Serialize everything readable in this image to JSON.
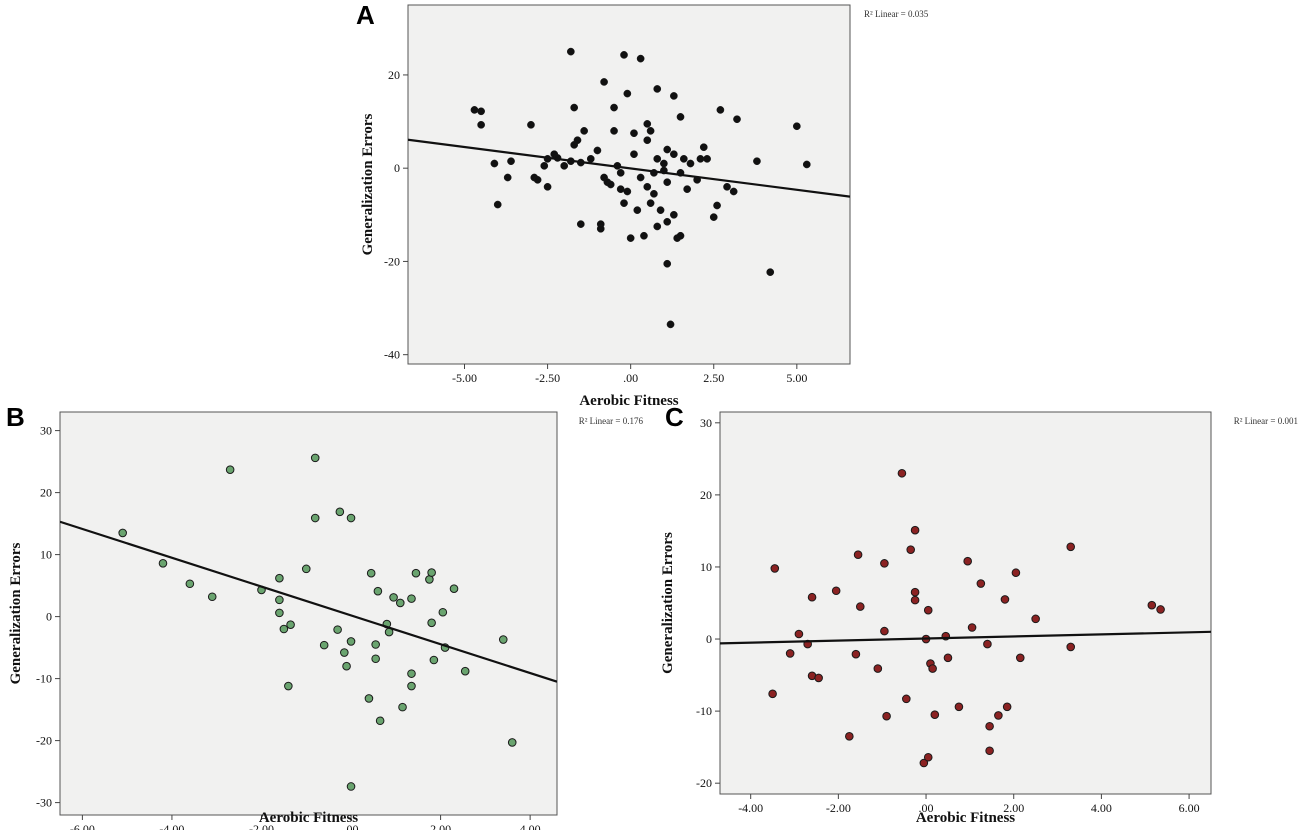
{
  "chart_data": [
    {
      "type": "scatter",
      "panel_label": "A",
      "xlabel": "Aerobic Fitness",
      "ylabel": "Generalization Errors",
      "xlim": [
        -6.7,
        6.6
      ],
      "ylim": [
        -42,
        35
      ],
      "xticks": [
        -5,
        -2.5,
        0,
        2.5,
        5
      ],
      "xtick_labels": [
        "-5.00",
        "-2.50",
        ".00",
        "2.50",
        "5.00"
      ],
      "yticks": [
        -40,
        -20,
        0,
        20
      ],
      "ytick_labels": [
        "-40",
        "-20",
        "0",
        "20"
      ],
      "r2_text": "R² Linear = 0.035",
      "point_color": "#111111",
      "fit_line": {
        "x": [
          -6.7,
          6.6
        ],
        "y": [
          6.1,
          -6.1
        ]
      },
      "points": [
        [
          -4.7,
          12.5
        ],
        [
          -4.5,
          12.2
        ],
        [
          -4.5,
          9.3
        ],
        [
          -4.1,
          1.0
        ],
        [
          -4.0,
          -7.8
        ],
        [
          -3.7,
          -2.0
        ],
        [
          -3.6,
          1.5
        ],
        [
          -3.0,
          9.3
        ],
        [
          -2.9,
          -2.0
        ],
        [
          -2.8,
          -2.5
        ],
        [
          -2.6,
          0.5
        ],
        [
          -2.5,
          2.0
        ],
        [
          -2.5,
          -4.0
        ],
        [
          -2.3,
          3.0
        ],
        [
          -2.2,
          2.2
        ],
        [
          -2.0,
          0.5
        ],
        [
          -1.8,
          25.0
        ],
        [
          -1.8,
          1.5
        ],
        [
          -1.7,
          5.0
        ],
        [
          -1.7,
          13.0
        ],
        [
          -1.6,
          6.0
        ],
        [
          -1.5,
          -12.0
        ],
        [
          -1.5,
          1.2
        ],
        [
          -1.4,
          8.0
        ],
        [
          -1.2,
          2.0
        ],
        [
          -1.0,
          3.8
        ],
        [
          -0.9,
          -12.0
        ],
        [
          -0.9,
          -13.0
        ],
        [
          -0.8,
          18.5
        ],
        [
          -0.8,
          -2.0
        ],
        [
          -0.7,
          -3.0
        ],
        [
          -0.6,
          -3.5
        ],
        [
          -0.5,
          13.0
        ],
        [
          -0.5,
          8.0
        ],
        [
          -0.4,
          0.5
        ],
        [
          -0.3,
          -1.0
        ],
        [
          -0.3,
          -4.5
        ],
        [
          -0.2,
          -7.5
        ],
        [
          -0.2,
          24.3
        ],
        [
          -0.1,
          16.0
        ],
        [
          -0.1,
          -5.0
        ],
        [
          0.0,
          -15.0
        ],
        [
          0.1,
          7.5
        ],
        [
          0.1,
          3.0
        ],
        [
          0.2,
          -9.0
        ],
        [
          0.3,
          23.5
        ],
        [
          0.3,
          -2.0
        ],
        [
          0.4,
          -14.5
        ],
        [
          0.5,
          9.5
        ],
        [
          0.5,
          6.0
        ],
        [
          0.5,
          -4.0
        ],
        [
          0.6,
          8.0
        ],
        [
          0.6,
          -7.5
        ],
        [
          0.7,
          -1.0
        ],
        [
          0.7,
          -5.5
        ],
        [
          0.8,
          17.0
        ],
        [
          0.8,
          2.0
        ],
        [
          0.8,
          -12.5
        ],
        [
          0.9,
          -9.0
        ],
        [
          1.0,
          1.0
        ],
        [
          1.0,
          -0.5
        ],
        [
          1.1,
          4.0
        ],
        [
          1.1,
          -3.0
        ],
        [
          1.1,
          -11.5
        ],
        [
          1.1,
          -20.5
        ],
        [
          1.2,
          -33.5
        ],
        [
          1.3,
          15.5
        ],
        [
          1.3,
          3.0
        ],
        [
          1.3,
          -10.0
        ],
        [
          1.4,
          -15.0
        ],
        [
          1.5,
          11.0
        ],
        [
          1.5,
          -1.0
        ],
        [
          1.5,
          -14.5
        ],
        [
          1.6,
          2.0
        ],
        [
          1.7,
          -4.5
        ],
        [
          1.8,
          1.0
        ],
        [
          2.0,
          -2.5
        ],
        [
          2.1,
          2.0
        ],
        [
          2.2,
          4.5
        ],
        [
          2.3,
          2.0
        ],
        [
          2.5,
          -10.5
        ],
        [
          2.6,
          -8.0
        ],
        [
          2.7,
          12.5
        ],
        [
          2.9,
          -4.0
        ],
        [
          3.1,
          -5.0
        ],
        [
          3.2,
          10.5
        ],
        [
          3.8,
          1.5
        ],
        [
          4.2,
          -22.3
        ],
        [
          5.0,
          9.0
        ],
        [
          5.3,
          0.8
        ]
      ]
    },
    {
      "type": "scatter",
      "panel_label": "B",
      "xlabel": "Aerobic Fitness",
      "ylabel": "Generalization Errors",
      "xlim": [
        -6.5,
        4.6
      ],
      "ylim": [
        -32,
        33
      ],
      "xticks": [
        -6,
        -4,
        -2,
        0,
        2,
        4
      ],
      "xtick_labels": [
        "-6.00",
        "-4.00",
        "-2.00",
        ".00",
        "2.00",
        "4.00"
      ],
      "yticks": [
        -30,
        -20,
        -10,
        0,
        10,
        20,
        30
      ],
      "ytick_labels": [
        "-30",
        "-20",
        "-10",
        "0",
        "10",
        "20",
        "30"
      ],
      "r2_text": "R² Linear = 0.176",
      "point_color": "#6aa46f",
      "fit_line": {
        "x": [
          -6.5,
          4.6
        ],
        "y": [
          15.3,
          -10.5
        ]
      },
      "points": [
        [
          -5.1,
          13.5
        ],
        [
          -4.2,
          8.6
        ],
        [
          -3.6,
          5.3
        ],
        [
          -3.1,
          3.2
        ],
        [
          -2.7,
          23.7
        ],
        [
          -2.0,
          4.3
        ],
        [
          -1.6,
          6.2
        ],
        [
          -1.6,
          2.7
        ],
        [
          -1.6,
          0.6
        ],
        [
          -1.5,
          -2.0
        ],
        [
          -1.4,
          -11.2
        ],
        [
          -1.35,
          -1.3
        ],
        [
          -1.0,
          7.7
        ],
        [
          -0.8,
          25.6
        ],
        [
          -0.8,
          15.9
        ],
        [
          -0.6,
          -4.6
        ],
        [
          -0.3,
          -2.1
        ],
        [
          -0.25,
          16.9
        ],
        [
          -0.15,
          -5.8
        ],
        [
          -0.1,
          -8.0
        ],
        [
          0.0,
          -4.0
        ],
        [
          0.0,
          15.9
        ],
        [
          0.0,
          -27.4
        ],
        [
          0.4,
          -13.2
        ],
        [
          0.45,
          7.0
        ],
        [
          0.55,
          -4.5
        ],
        [
          0.55,
          -6.8
        ],
        [
          0.6,
          4.1
        ],
        [
          0.65,
          -16.8
        ],
        [
          0.8,
          -1.2
        ],
        [
          0.85,
          -2.5
        ],
        [
          0.95,
          3.1
        ],
        [
          1.1,
          2.2
        ],
        [
          1.15,
          -14.6
        ],
        [
          1.35,
          -9.2
        ],
        [
          1.35,
          -11.2
        ],
        [
          1.35,
          2.9
        ],
        [
          1.45,
          7.0
        ],
        [
          1.75,
          6.0
        ],
        [
          1.8,
          7.1
        ],
        [
          1.8,
          -1.0
        ],
        [
          1.85,
          -7.0
        ],
        [
          2.05,
          0.7
        ],
        [
          2.1,
          -5.0
        ],
        [
          2.3,
          4.5
        ],
        [
          2.55,
          -8.8
        ],
        [
          3.4,
          -3.7
        ],
        [
          3.6,
          -20.3
        ]
      ]
    },
    {
      "type": "scatter",
      "panel_label": "C",
      "xlabel": "Aerobic Fitness",
      "ylabel": "Generalization Errors",
      "xlim": [
        -4.7,
        6.5
      ],
      "ylim": [
        -21.5,
        31.5
      ],
      "xticks": [
        -4,
        -2,
        0,
        2,
        4,
        6
      ],
      "xtick_labels": [
        "-4.00",
        "-2.00",
        ".00",
        "2.00",
        "4.00",
        "6.00"
      ],
      "yticks": [
        -20,
        -10,
        0,
        10,
        20,
        30
      ],
      "ytick_labels": [
        "-20",
        "-10",
        "0",
        "10",
        "20",
        "30"
      ],
      "r2_text": "R² Linear = 0.001",
      "point_color": "#8b2222",
      "fit_line": {
        "x": [
          -4.7,
          6.5
        ],
        "y": [
          -0.6,
          1.0
        ]
      },
      "points": [
        [
          -3.45,
          9.8
        ],
        [
          -3.5,
          -7.6
        ],
        [
          -3.1,
          -2.0
        ],
        [
          -2.9,
          0.7
        ],
        [
          -2.7,
          -0.7
        ],
        [
          -2.6,
          5.8
        ],
        [
          -2.6,
          -5.1
        ],
        [
          -2.45,
          -5.4
        ],
        [
          -2.05,
          6.7
        ],
        [
          -1.75,
          -13.5
        ],
        [
          -1.6,
          -2.1
        ],
        [
          -1.55,
          11.7
        ],
        [
          -1.5,
          4.5
        ],
        [
          -1.1,
          -4.1
        ],
        [
          -0.95,
          1.1
        ],
        [
          -0.95,
          10.5
        ],
        [
          -0.9,
          -10.7
        ],
        [
          -0.55,
          23.0
        ],
        [
          -0.45,
          -8.3
        ],
        [
          -0.35,
          12.4
        ],
        [
          -0.25,
          15.1
        ],
        [
          -0.25,
          6.5
        ],
        [
          -0.25,
          5.4
        ],
        [
          -0.05,
          -17.2
        ],
        [
          0.0,
          0.0
        ],
        [
          0.05,
          -16.4
        ],
        [
          0.05,
          4.0
        ],
        [
          0.1,
          -3.4
        ],
        [
          0.15,
          -4.1
        ],
        [
          0.2,
          -10.5
        ],
        [
          0.45,
          0.4
        ],
        [
          0.5,
          -2.6
        ],
        [
          0.75,
          -9.4
        ],
        [
          0.95,
          10.8
        ],
        [
          1.05,
          1.6
        ],
        [
          1.25,
          7.7
        ],
        [
          1.4,
          -0.7
        ],
        [
          1.45,
          -15.5
        ],
        [
          1.45,
          -12.1
        ],
        [
          1.65,
          -10.6
        ],
        [
          1.8,
          5.5
        ],
        [
          1.85,
          -9.4
        ],
        [
          2.05,
          9.2
        ],
        [
          2.15,
          -2.6
        ],
        [
          2.5,
          2.8
        ],
        [
          3.3,
          12.8
        ],
        [
          3.3,
          -1.1
        ],
        [
          5.15,
          4.7
        ],
        [
          5.35,
          4.1
        ]
      ]
    }
  ]
}
